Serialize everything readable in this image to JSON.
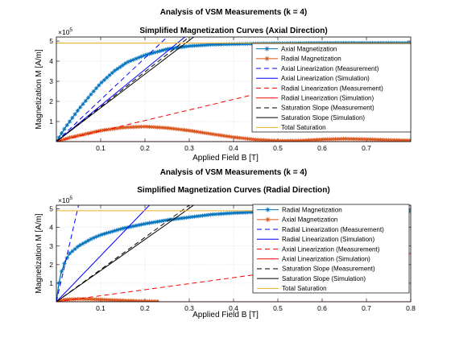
{
  "chart_data": [
    {
      "type": "line",
      "suptitle": "Analysis of VSM Measurements (k = 4)",
      "title": "Simplified Magnetization Curves (Axial Direction)",
      "xlabel": "Applied Field B [T]",
      "ylabel": "Magnetization M [A/m]",
      "y_exponent_label": "×10",
      "y_exponent": "5",
      "xlim": [
        0,
        0.8
      ],
      "ylim": [
        0,
        5.2
      ],
      "y_scale_note": "values in units of 1e5 A/m",
      "xticks": [
        "0.1",
        "0.2",
        "0.3",
        "0.4",
        "0.5",
        "0.6",
        "0.7"
      ],
      "yticks": [
        "1",
        "2",
        "3",
        "4",
        "5"
      ],
      "grid": true,
      "legend_position": "top-right",
      "series": [
        {
          "name": "Axial Magnetization",
          "color": "#0072bd",
          "style": "solid",
          "marker": "asterisk",
          "x": [
            0,
            0.02,
            0.05,
            0.08,
            0.1,
            0.13,
            0.16,
            0.2,
            0.25,
            0.3,
            0.35,
            0.4,
            0.45,
            0.5,
            0.6,
            0.7,
            0.8
          ],
          "y": [
            0,
            0.7,
            1.6,
            2.4,
            2.9,
            3.5,
            3.95,
            4.3,
            4.6,
            4.75,
            4.82,
            4.85,
            4.87,
            4.88,
            4.9,
            4.9,
            4.9
          ]
        },
        {
          "name": "Radial Magnetization",
          "color": "#d95319",
          "style": "solid",
          "marker": "asterisk",
          "x": [
            0,
            0.03,
            0.06,
            0.1,
            0.15,
            0.2,
            0.25,
            0.3,
            0.35,
            0.4,
            0.45,
            0.5,
            0.55,
            0.6,
            0.65,
            0.7,
            0.75,
            0.8
          ],
          "y": [
            0,
            0.2,
            0.35,
            0.55,
            0.7,
            0.75,
            0.68,
            0.55,
            0.38,
            0.22,
            0.1,
            0.04,
            0.05,
            0.11,
            0.14,
            0.12,
            0.08,
            0.06
          ]
        },
        {
          "name": "Axial Linearization (Measurement)",
          "color": "#0000ff",
          "style": "dashed",
          "x": [
            0,
            0.25
          ],
          "y": [
            0,
            5.2
          ]
        },
        {
          "name": "Axial Linearization (Simulation)",
          "color": "#0000ff",
          "style": "solid",
          "x": [
            0,
            0.29
          ],
          "y": [
            0,
            5.2
          ]
        },
        {
          "name": "Radial Linearization (Measurement)",
          "color": "#ff0000",
          "style": "dashed",
          "x": [
            0,
            0.8
          ],
          "y": [
            0,
            4.2
          ]
        },
        {
          "name": "Radial Linearization (Simulation)",
          "color": "#ff0000",
          "style": "solid",
          "x": [
            0,
            0.8
          ],
          "y": [
            0,
            0
          ]
        },
        {
          "name": "Saturation Slope (Measurement)",
          "color": "#000000",
          "style": "dashed",
          "x": [
            0,
            0.3
          ],
          "y": [
            0,
            5.2
          ]
        },
        {
          "name": "Saturation Slope (Simulation)",
          "color": "#000000",
          "style": "solid",
          "x": [
            0,
            0.31
          ],
          "y": [
            0,
            5.2
          ]
        },
        {
          "name": "Total Saturation",
          "color": "#edb120",
          "style": "solid",
          "x": [
            0,
            0.8
          ],
          "y": [
            4.9,
            4.9
          ]
        }
      ]
    },
    {
      "type": "line",
      "suptitle": "Analysis of VSM Measurements (k = 4)",
      "title": "Simplified Magnetization Curves (Radial Direction)",
      "xlabel": "Applied Field B [T]",
      "ylabel": "Magnetization M [A/m]",
      "y_exponent_label": "×10",
      "y_exponent": "5",
      "xlim": [
        0,
        0.8
      ],
      "ylim": [
        0,
        5.2
      ],
      "y_scale_note": "values in units of 1e5 A/m",
      "xticks": [
        "0.1",
        "0.2",
        "0.3",
        "0.4",
        "0.5",
        "0.6",
        "0.7",
        "0.8"
      ],
      "yticks": [
        "1",
        "2",
        "3",
        "4",
        "5"
      ],
      "grid": true,
      "legend_position": "top-right",
      "series": [
        {
          "name": "Radial Magnetization",
          "color": "#0072bd",
          "style": "solid",
          "marker": "asterisk",
          "x": [
            0,
            0.005,
            0.01,
            0.02,
            0.03,
            0.05,
            0.08,
            0.1,
            0.15,
            0.2,
            0.25,
            0.3,
            0.35,
            0.4,
            0.45,
            0.5,
            0.6,
            0.7,
            0.8
          ],
          "y": [
            0,
            0.9,
            1.5,
            2.2,
            2.6,
            3.0,
            3.4,
            3.6,
            3.95,
            4.2,
            4.4,
            4.55,
            4.7,
            4.78,
            4.83,
            4.85,
            4.88,
            4.9,
            4.9
          ]
        },
        {
          "name": "Axial Magnetization",
          "color": "#d95319",
          "style": "solid",
          "marker": "asterisk",
          "x": [
            0,
            0.02,
            0.05,
            0.08,
            0.12,
            0.16,
            0.2,
            0.23
          ],
          "y": [
            0,
            0.12,
            0.15,
            0.14,
            0.1,
            0.06,
            0.03,
            0.02
          ]
        },
        {
          "name": "Radial Linearization (Measurement)",
          "color": "#0000ff",
          "style": "dashed",
          "x": [
            0,
            0.05
          ],
          "y": [
            0,
            5.2
          ]
        },
        {
          "name": "Radial Linearization (Simulation)",
          "color": "#0000ff",
          "style": "solid",
          "x": [
            0,
            0.21
          ],
          "y": [
            0,
            5.2
          ]
        },
        {
          "name": "Axial Linearization (Measurement)",
          "color": "#ff0000",
          "style": "dashed",
          "x": [
            0,
            0.8
          ],
          "y": [
            0,
            2.6
          ]
        },
        {
          "name": "Axial Linearization (Simulation)",
          "color": "#ff0000",
          "style": "solid",
          "x": [
            0,
            0.8
          ],
          "y": [
            0,
            0
          ]
        },
        {
          "name": "Saturation Slope (Measurement)",
          "color": "#000000",
          "style": "dashed",
          "x": [
            0,
            0.3
          ],
          "y": [
            0,
            5.2
          ]
        },
        {
          "name": "Saturation Slope (Simulation)",
          "color": "#000000",
          "style": "solid",
          "x": [
            0,
            0.31
          ],
          "y": [
            0,
            5.2
          ]
        },
        {
          "name": "Total Saturation",
          "color": "#edb120",
          "style": "solid",
          "x": [
            0,
            0.8
          ],
          "y": [
            4.9,
            4.9
          ]
        }
      ]
    }
  ]
}
